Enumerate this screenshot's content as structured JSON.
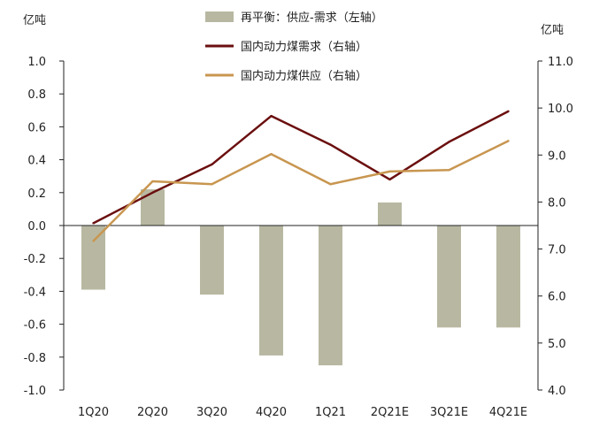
{
  "chart_data": {
    "type": "bar+line",
    "categories": [
      "1Q20",
      "2Q20",
      "3Q20",
      "4Q20",
      "1Q21",
      "2Q21E",
      "3Q21E",
      "4Q21E"
    ],
    "left_axis": {
      "unit": "亿吨",
      "ylim": [
        -1.0,
        1.0
      ],
      "ticks": [
        "1.0",
        "0.8",
        "0.6",
        "0.4",
        "0.2",
        "0.0",
        "-0.2",
        "-0.4",
        "-0.6",
        "-0.8",
        "-1.0"
      ]
    },
    "right_axis": {
      "unit": "亿吨",
      "ylim": [
        4.0,
        11.0
      ],
      "ticks": [
        "11.0",
        "10.0",
        "9.0",
        "8.0",
        "7.0",
        "6.0",
        "5.0",
        "4.0"
      ]
    },
    "series": [
      {
        "name": "再平衡：供应-需求（左轴）",
        "kind": "bar",
        "axis": "left",
        "color": "#b8b8a2",
        "values": [
          -0.39,
          0.22,
          -0.42,
          -0.79,
          -0.85,
          0.14,
          -0.62,
          -0.62
        ]
      },
      {
        "name": "国内动力煤需求（右轴）",
        "kind": "line",
        "axis": "right",
        "color": "#6b0f0f",
        "values": [
          7.55,
          8.2,
          8.8,
          9.83,
          9.22,
          8.48,
          9.28,
          9.93
        ]
      },
      {
        "name": "国内动力煤供应（右轴）",
        "kind": "line",
        "axis": "right",
        "color": "#c89650",
        "values": [
          7.17,
          8.44,
          8.38,
          9.02,
          8.38,
          8.65,
          8.68,
          9.3
        ]
      }
    ],
    "legend_position": "top-center",
    "grid": false
  }
}
